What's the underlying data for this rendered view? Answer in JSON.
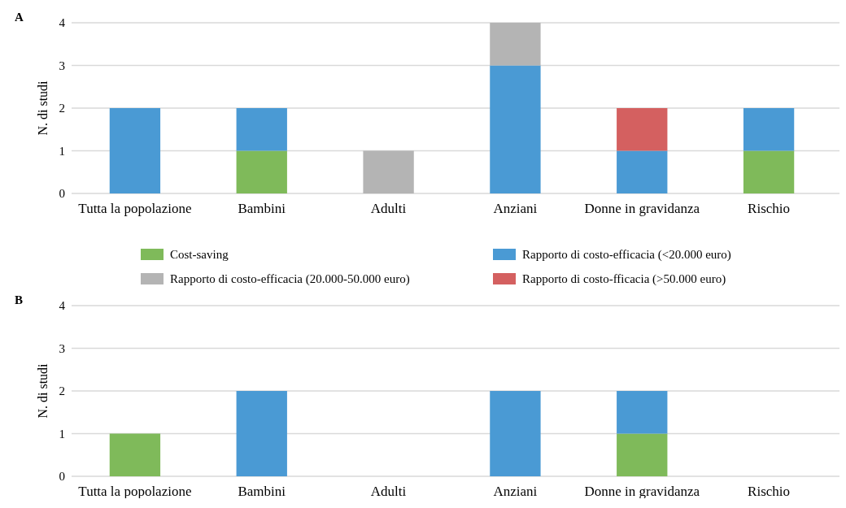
{
  "chart_data": [
    {
      "type": "bar",
      "title": "A",
      "ylabel": "N. di studi",
      "stacked": true,
      "categories": [
        "Tutta la popolazione",
        "Bambini",
        "Adulti",
        "Anziani",
        "Donne in gravidanza",
        "Rischio"
      ],
      "ylim": [
        0,
        4
      ],
      "yticks": [
        0,
        1,
        2,
        3,
        4
      ],
      "grid": "y",
      "legend": "bottom",
      "series": [
        {
          "name": "Cost-saving",
          "color": "#7fba5a",
          "values": [
            0,
            1,
            0,
            0,
            0,
            1
          ]
        },
        {
          "name": "Rapporto di costo-efficacia (<20.000 euro)",
          "color": "#4a9ad4",
          "values": [
            2,
            1,
            0,
            3,
            1,
            1
          ]
        },
        {
          "name": "Rapporto di costo-efficacia (20.000-50.000 euro)",
          "color": "#b4b4b4",
          "values": [
            0,
            0,
            1,
            1,
            0,
            0
          ]
        },
        {
          "name": "Rapporto di costo-fficacia (>50.000 euro)",
          "color": "#d46060",
          "values": [
            0,
            0,
            0,
            0,
            1,
            0
          ]
        }
      ]
    },
    {
      "type": "bar",
      "title": "B",
      "ylabel": "N. di studi",
      "stacked": true,
      "categories": [
        "Tutta la popolazione",
        "Bambini",
        "Adulti",
        "Anziani",
        "Donne in gravidanza",
        "Rischio"
      ],
      "ylim": [
        0,
        4
      ],
      "yticks": [
        0,
        1,
        2,
        3,
        4
      ],
      "grid": "y",
      "legend": false,
      "series": [
        {
          "color": "#7fba5a",
          "values": [
            1,
            0,
            0,
            0,
            1,
            0
          ]
        },
        {
          "color": "#4a9ad4",
          "values": [
            0,
            2,
            0,
            2,
            1,
            0
          ]
        }
      ]
    }
  ]
}
